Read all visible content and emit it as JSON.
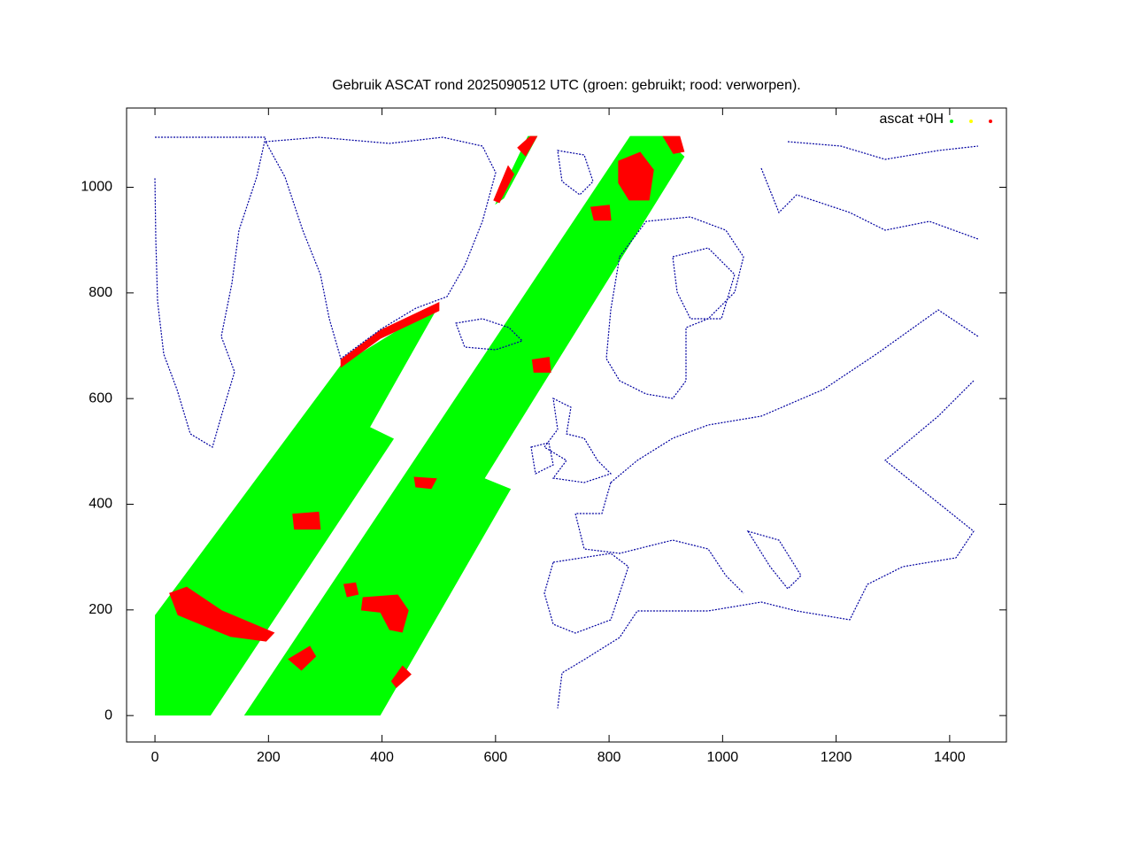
{
  "chart_data": {
    "type": "scatter",
    "title": "Gebruik ASCAT rond 2025090512 UTC (groen: gebruikt; rood: verworpen).",
    "xlim": [
      -50,
      1500
    ],
    "ylim": [
      -50,
      1150
    ],
    "xticks": [
      0,
      200,
      400,
      600,
      800,
      1000,
      1200,
      1400
    ],
    "yticks": [
      0,
      200,
      400,
      600,
      800,
      1000
    ],
    "legend": {
      "label": "ascat +0H",
      "position": "top-right",
      "colors": [
        "#00ff00",
        "#ffff00",
        "#ff0000"
      ]
    },
    "regions": [
      {
        "color": "#00ff00",
        "x": [
          0,
          98,
          421,
          379,
          501,
          327,
          0
        ],
        "y": [
          0,
          0,
          524,
          546,
          778,
          663,
          190
        ]
      },
      {
        "color": "#00ff00",
        "x": [
          157,
          397,
          627,
          581,
          933,
          894,
          837
        ],
        "y": [
          0,
          0,
          429,
          449,
          1058,
          1097,
          1097
        ]
      },
      {
        "color": "#00ff00",
        "x": [
          599,
          657,
          674,
          615
        ],
        "y": [
          967,
          1097,
          1097,
          979
        ]
      },
      {
        "color": "#ff0000",
        "x": [
          25,
          56,
          118,
          211,
          196,
          133,
          40
        ],
        "y": [
          232,
          244,
          199,
          157,
          140,
          149,
          190
        ]
      },
      {
        "color": "#ff0000",
        "x": [
          242,
          289,
          292,
          245
        ],
        "y": [
          382,
          386,
          352,
          352
        ]
      },
      {
        "color": "#ff0000",
        "x": [
          456,
          497,
          487,
          459
        ],
        "y": [
          452,
          449,
          429,
          432
        ]
      },
      {
        "color": "#ff0000",
        "x": [
          366,
          428,
          447,
          436,
          413,
          397,
          363
        ],
        "y": [
          224,
          229,
          199,
          157,
          162,
          195,
          199
        ]
      },
      {
        "color": "#ff0000",
        "x": [
          234,
          273,
          284,
          258
        ],
        "y": [
          107,
          132,
          112,
          85
        ]
      },
      {
        "color": "#ff0000",
        "x": [
          416,
          436,
          452,
          425
        ],
        "y": [
          65,
          95,
          78,
          52
        ]
      },
      {
        "color": "#ff0000",
        "x": [
          332,
          354,
          359,
          338
        ],
        "y": [
          249,
          252,
          229,
          224
        ]
      },
      {
        "color": "#ff0000",
        "x": [
          816,
          855,
          879,
          871,
          835,
          816
        ],
        "y": [
          1050,
          1067,
          1033,
          975,
          975,
          1008
        ]
      },
      {
        "color": "#ff0000",
        "x": [
          767,
          801,
          804,
          773
        ],
        "y": [
          963,
          967,
          937,
          937
        ]
      },
      {
        "color": "#ff0000",
        "x": [
          664,
          695,
          698,
          667
        ],
        "y": [
          674,
          679,
          649,
          649
        ]
      },
      {
        "color": "#ff0000",
        "x": [
          327,
          397,
          501,
          501,
          397,
          327
        ],
        "y": [
          674,
          730,
          783,
          766,
          713,
          658
        ]
      },
      {
        "color": "#ff0000",
        "x": [
          596,
          622,
          633,
          607
        ],
        "y": [
          975,
          1042,
          1025,
          970
        ]
      },
      {
        "color": "#ff0000",
        "x": [
          638,
          661,
          674,
          653
        ],
        "y": [
          1075,
          1097,
          1097,
          1058
        ]
      },
      {
        "color": "#ff0000",
        "x": [
          894,
          925,
          933,
          913
        ],
        "y": [
          1097,
          1097,
          1067,
          1063
        ]
      }
    ]
  }
}
